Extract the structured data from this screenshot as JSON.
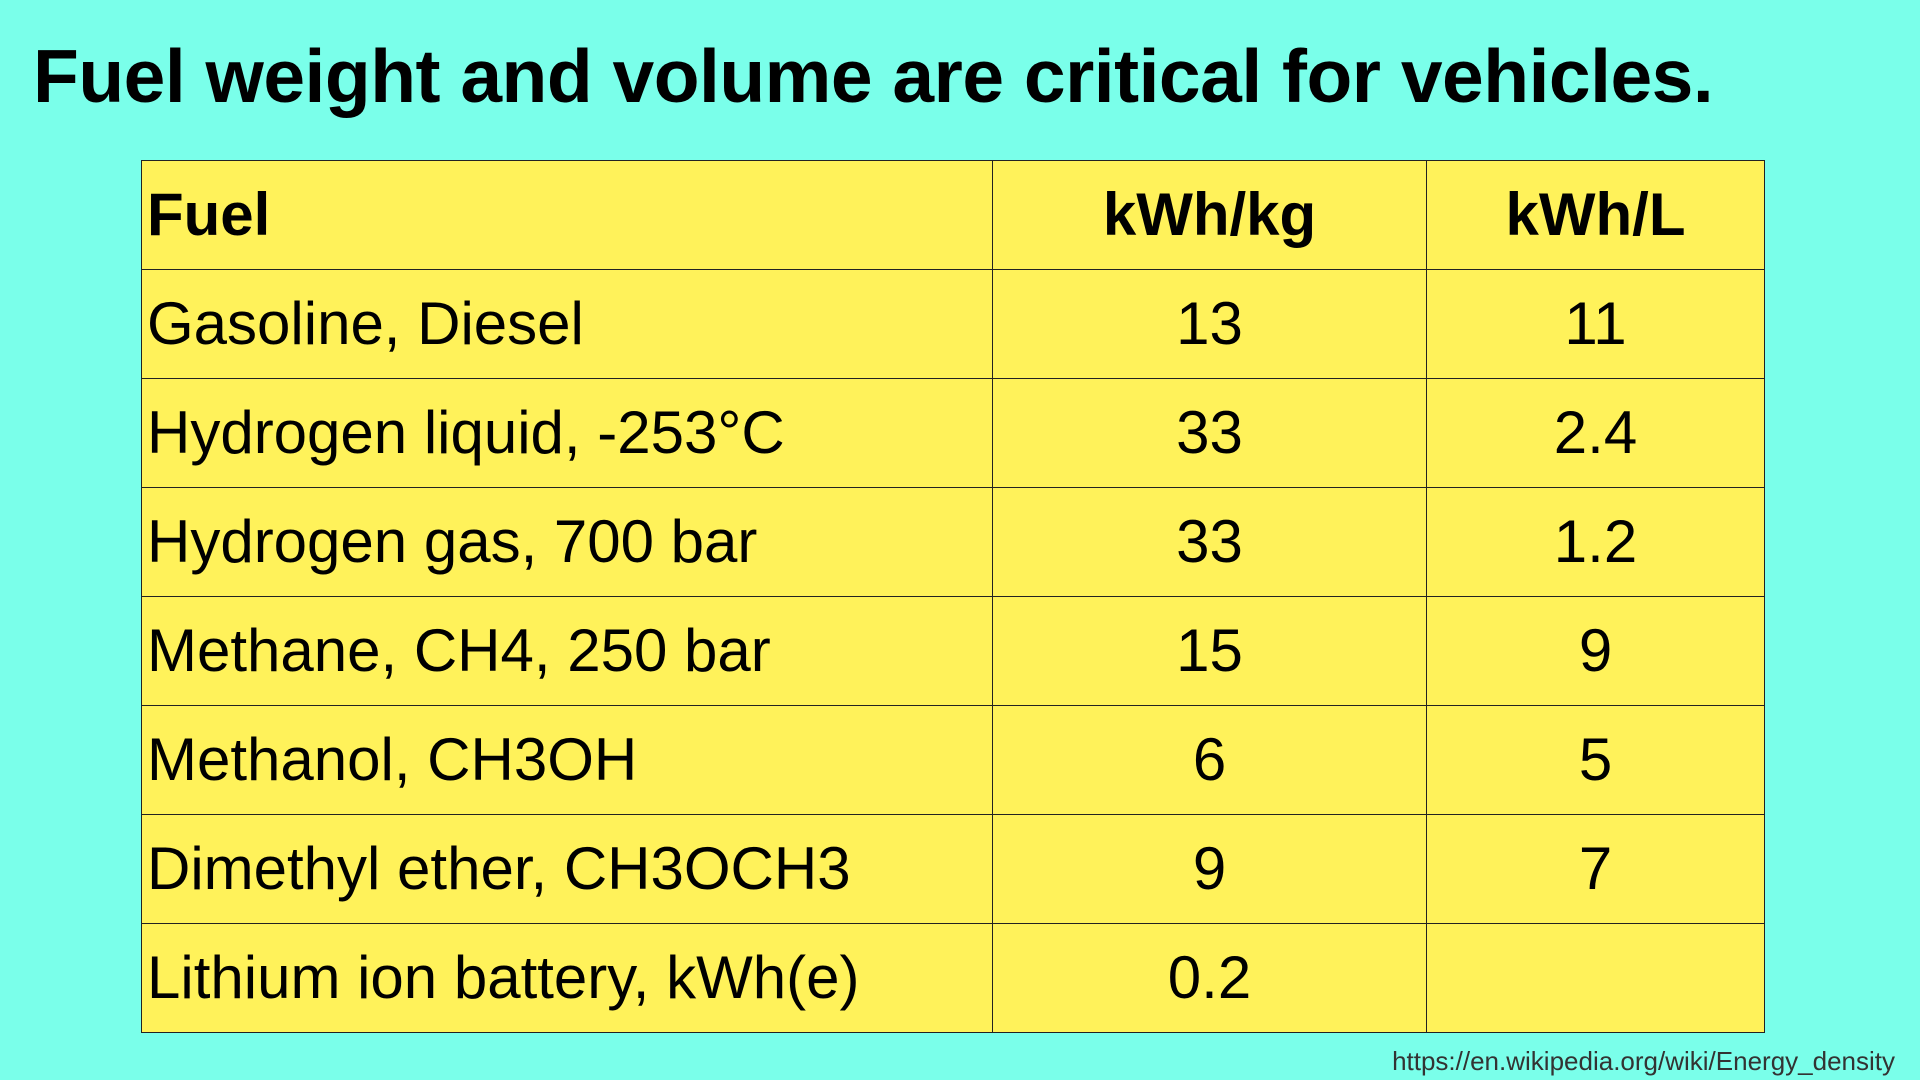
{
  "slide": {
    "title": "Fuel weight and volume are critical for vehicles.",
    "source": "https://en.wikipedia.org/wiki/Energy_density"
  },
  "table": {
    "headers": [
      "Fuel",
      "kWh/kg",
      "kWh/L"
    ],
    "rows": [
      {
        "fuel": "Gasoline, Diesel",
        "kwh_per_kg": "13",
        "kwh_per_l": "11"
      },
      {
        "fuel": "Hydrogen liquid, -253°C",
        "kwh_per_kg": "33",
        "kwh_per_l": "2.4"
      },
      {
        "fuel": "Hydrogen gas, 700 bar",
        "kwh_per_kg": "33",
        "kwh_per_l": "1.2"
      },
      {
        "fuel": "Methane, CH4, 250 bar",
        "kwh_per_kg": "15",
        "kwh_per_l": "9"
      },
      {
        "fuel": "Methanol, CH3OH",
        "kwh_per_kg": "6",
        "kwh_per_l": "5"
      },
      {
        "fuel": "Dimethyl ether, CH3OCH3",
        "kwh_per_kg": "9",
        "kwh_per_l": "7"
      },
      {
        "fuel": "Lithium ion battery, kWh(e)",
        "kwh_per_kg": "0.2",
        "kwh_per_l": ""
      }
    ]
  },
  "colors": {
    "background": "#7affea",
    "table_fill": "#fff25a",
    "text": "#000000"
  }
}
